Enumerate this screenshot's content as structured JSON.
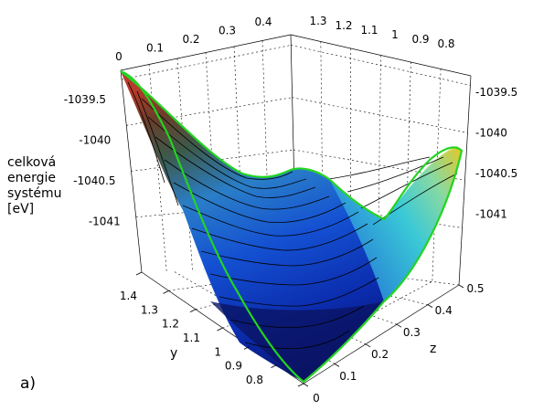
{
  "panel_label": "a)",
  "chart_data": {
    "type": "surface",
    "title": "",
    "zlabel_lines": [
      "celková",
      "energie",
      "systému",
      "[eV]"
    ],
    "xlabel": "y",
    "ylabel": "z",
    "x_axis_y_ticks": [
      "0.8",
      "0.9",
      "1",
      "1.1",
      "1.2",
      "1.3",
      "1.4"
    ],
    "x_axis_y_tick_values": [
      0.8,
      0.9,
      1.0,
      1.1,
      1.2,
      1.3,
      1.4
    ],
    "y_axis_z_ticks": [
      "0",
      "0.1",
      "0.2",
      "0.3",
      "0.4",
      "0.5"
    ],
    "y_axis_z_tick_values": [
      0,
      0.1,
      0.2,
      0.3,
      0.4,
      0.5
    ],
    "top_back_z_ticks": [
      "0",
      "0.1",
      "0.2",
      "0.3",
      "0.4"
    ],
    "top_back_y_ticks": [
      "1.3",
      "1.2",
      "1.1",
      "1",
      "0.9",
      "0.8"
    ],
    "energy_ticks_left": [
      "-1039.5",
      "-1040",
      "-1040.5",
      "-1041"
    ],
    "energy_ticks_right": [
      "-1039.5",
      "-1040",
      "-1040.5",
      "-1041"
    ],
    "energy_tick_values": [
      -1039.5,
      -1040,
      -1040.5,
      -1041
    ],
    "y_range": [
      0.75,
      1.4
    ],
    "z_range": [
      0,
      0.5
    ],
    "energy_range": [
      -1041.6,
      -1039.4
    ],
    "grid": true,
    "colormap": [
      "#0a1464",
      "#0a2aaa",
      "#1450d2",
      "#2896e6",
      "#32c8dc",
      "#64e6b4",
      "#c8e65a",
      "#e6d232",
      "#5a4a23",
      "#b03a28"
    ],
    "surface_samples": [
      {
        "y": 1.4,
        "z": 0.0,
        "energy": -1039.45
      },
      {
        "y": 1.4,
        "z": 0.5,
        "energy": -1040.8
      },
      {
        "y": 0.75,
        "z": 0.0,
        "energy": -1041.6
      },
      {
        "y": 0.75,
        "z": 0.5,
        "energy": -1039.95
      },
      {
        "y": 1.05,
        "z": 0.25,
        "energy": -1040.7
      }
    ],
    "boundary_color": "#22d422",
    "contour_color": "#000000"
  }
}
